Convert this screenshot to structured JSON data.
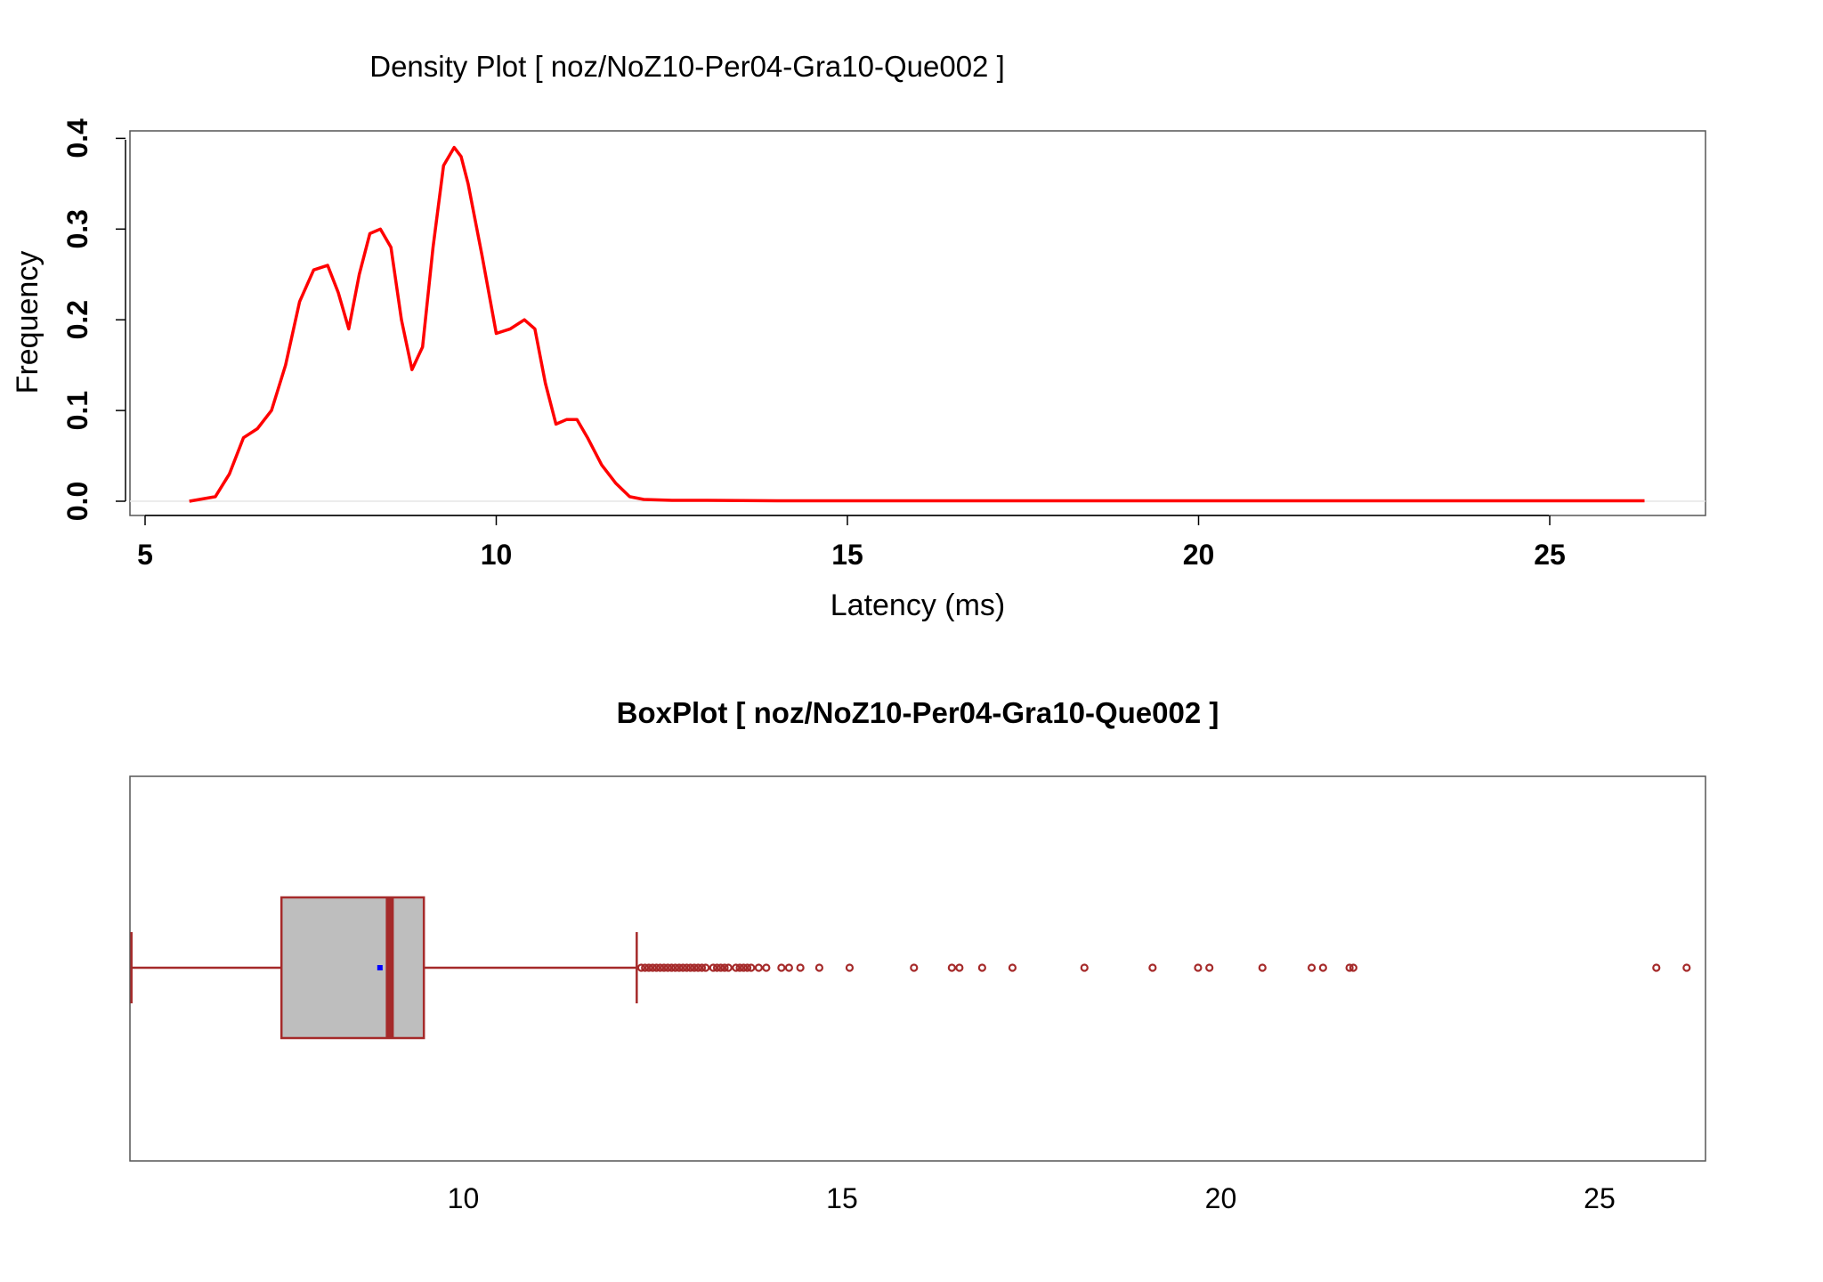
{
  "chart_data": [
    {
      "type": "line",
      "title": "Density Plot [ noz/NoZ10-Per04-Gra10-Que002 ]",
      "xlabel": "Latency (ms)",
      "ylabel": "Frequency",
      "xlim": [
        5.6,
        26.4
      ],
      "ylim": [
        0,
        0.4
      ],
      "x_ticks": [
        "5",
        "10",
        "15",
        "20",
        "25"
      ],
      "x_tick_values": [
        5,
        10,
        15,
        20,
        25
      ],
      "y_ticks": [
        "0.0",
        "0.1",
        "0.2",
        "0.3",
        "0.4"
      ],
      "y_tick_values": [
        0,
        0.1,
        0.2,
        0.3,
        0.4
      ],
      "line_color": "#ff0000",
      "series": [
        {
          "x": [
            5.63,
            6.0,
            6.2,
            6.4,
            6.6,
            6.8,
            7.0,
            7.2,
            7.4,
            7.6,
            7.75,
            7.9,
            8.05,
            8.2,
            8.35,
            8.5,
            8.65,
            8.8,
            8.95,
            9.1,
            9.25,
            9.4,
            9.5,
            9.6,
            9.8,
            10.0,
            10.2,
            10.4,
            10.55,
            10.7,
            10.85,
            11.0,
            11.15,
            11.3,
            11.5,
            11.7,
            11.9,
            12.1,
            12.5,
            13.0,
            14.0,
            16.0,
            18.0,
            20.0,
            22.0,
            24.0,
            26.35
          ],
          "y": [
            0.0,
            0.005,
            0.03,
            0.07,
            0.08,
            0.1,
            0.15,
            0.22,
            0.255,
            0.26,
            0.23,
            0.19,
            0.25,
            0.295,
            0.3,
            0.28,
            0.2,
            0.145,
            0.17,
            0.28,
            0.37,
            0.39,
            0.38,
            0.35,
            0.27,
            0.185,
            0.19,
            0.2,
            0.19,
            0.13,
            0.085,
            0.09,
            0.09,
            0.07,
            0.04,
            0.02,
            0.005,
            0.002,
            0.001,
            0.001,
            0.0005,
            0.0005,
            0.0005,
            0.0005,
            0.0005,
            0.0005,
            0.0005
          ]
        }
      ]
    },
    {
      "type": "box",
      "title": "BoxPlot [ noz/NoZ10-Per04-Gra10-Que002 ]",
      "xlim": [
        5.6,
        26.4
      ],
      "x_ticks": [
        "10",
        "15",
        "20",
        "25"
      ],
      "x_tick_values": [
        10,
        15,
        20,
        25
      ],
      "box_fill": "#bebebe",
      "box_stroke": "#a52a2a",
      "mean_color": "#0000ff",
      "whisker_low": 5.62,
      "q1": 7.6,
      "median": 9.03,
      "q3": 9.48,
      "whisker_high": 12.29,
      "mean": 8.9,
      "outliers": [
        12.35,
        12.4,
        12.45,
        12.5,
        12.55,
        12.6,
        12.65,
        12.7,
        12.75,
        12.8,
        12.85,
        12.9,
        12.95,
        13.0,
        13.05,
        13.1,
        13.15,
        13.2,
        13.3,
        13.35,
        13.4,
        13.45,
        13.5,
        13.6,
        13.65,
        13.7,
        13.75,
        13.8,
        13.9,
        14.0,
        14.2,
        14.3,
        14.45,
        14.7,
        15.1,
        15.95,
        16.45,
        16.55,
        16.85,
        17.25,
        18.2,
        19.1,
        19.7,
        19.85,
        20.55,
        21.2,
        21.35,
        21.7,
        21.75,
        25.75,
        26.15
      ]
    }
  ]
}
